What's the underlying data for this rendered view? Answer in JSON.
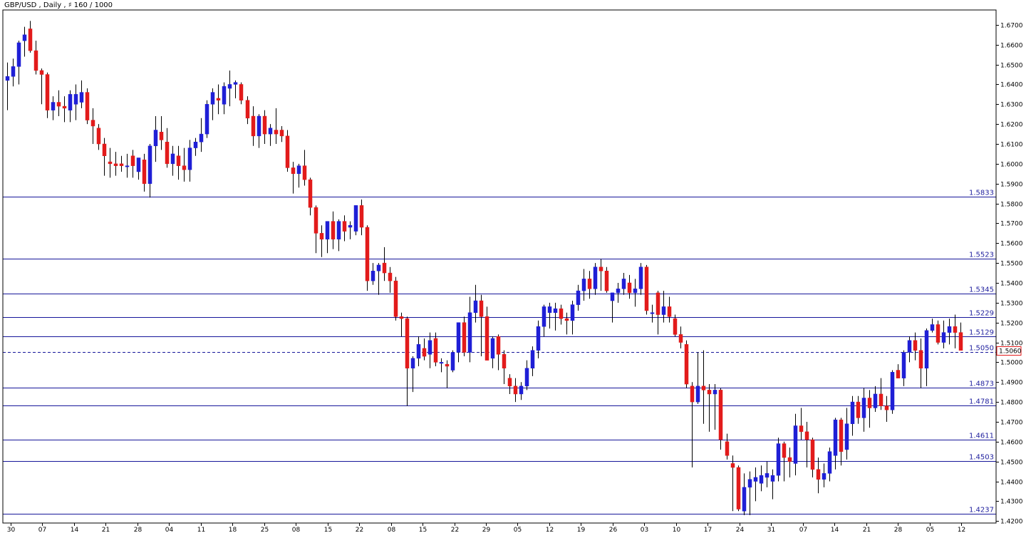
{
  "chart_data": {
    "type": "candlestick",
    "title": "GBP/USD , Daily , ♯ 160 / 1000",
    "ylim": [
      1.419,
      1.6775
    ],
    "y_ticks": [
      1.67,
      1.66,
      1.65,
      1.64,
      1.63,
      1.62,
      1.61,
      1.6,
      1.59,
      1.58,
      1.57,
      1.56,
      1.55,
      1.54,
      1.53,
      1.52,
      1.51,
      1.5,
      1.49,
      1.48,
      1.47,
      1.46,
      1.45,
      1.44,
      1.43,
      1.42
    ],
    "x_tick_labels": [
      "30",
      "07",
      "14",
      "21",
      "28",
      "04",
      "11",
      "18",
      "25",
      "08",
      "15",
      "22",
      "08",
      "15",
      "22",
      "29",
      "05",
      "12",
      "19",
      "26",
      "03",
      "10",
      "17",
      "24",
      "31",
      "07",
      "14",
      "21",
      "28",
      "05",
      "12"
    ],
    "levels": [
      1.5833,
      1.5523,
      1.5345,
      1.5229,
      1.5129,
      1.505,
      1.4873,
      1.4781,
      1.4611,
      1.4503,
      1.4237
    ],
    "current_price": 1.506,
    "colors": {
      "bull": "#1f1fd6",
      "bear": "#e21b1b",
      "level": "#16169a",
      "axis": "#000000"
    },
    "candles": [
      [
        1.642,
        1.651,
        1.627,
        1.644
      ],
      [
        1.644,
        1.653,
        1.639,
        1.649
      ],
      [
        1.649,
        1.662,
        1.64,
        1.661
      ],
      [
        1.662,
        1.669,
        1.654,
        1.665
      ],
      [
        1.668,
        1.672,
        1.656,
        1.657
      ],
      [
        1.657,
        1.662,
        1.645,
        1.647
      ],
      [
        1.647,
        1.648,
        1.63,
        1.645
      ],
      [
        1.645,
        1.646,
        1.623,
        1.627
      ],
      [
        1.627,
        1.634,
        1.622,
        1.631
      ],
      [
        1.631,
        1.637,
        1.624,
        1.629
      ],
      [
        1.629,
        1.634,
        1.621,
        1.628
      ],
      [
        1.627,
        1.637,
        1.621,
        1.635
      ],
      [
        1.63,
        1.64,
        1.622,
        1.635
      ],
      [
        1.631,
        1.642,
        1.628,
        1.636
      ],
      [
        1.636,
        1.638,
        1.62,
        1.622
      ],
      [
        1.622,
        1.628,
        1.61,
        1.619
      ],
      [
        1.618,
        1.62,
        1.607,
        1.61
      ],
      [
        1.61,
        1.613,
        1.594,
        1.604
      ],
      [
        1.601,
        1.608,
        1.593,
        1.6
      ],
      [
        1.6,
        1.606,
        1.594,
        1.599
      ],
      [
        1.6,
        1.604,
        1.596,
        1.599
      ],
      [
        1.599,
        1.605,
        1.593,
        1.599
      ],
      [
        1.604,
        1.607,
        1.593,
        1.599
      ],
      [
        1.596,
        1.603,
        1.592,
        1.603
      ],
      [
        1.602,
        1.605,
        1.586,
        1.59
      ],
      [
        1.59,
        1.61,
        1.583,
        1.609
      ],
      [
        1.609,
        1.624,
        1.601,
        1.617
      ],
      [
        1.616,
        1.624,
        1.607,
        1.612
      ],
      [
        1.611,
        1.618,
        1.598,
        1.6
      ],
      [
        1.6,
        1.609,
        1.594,
        1.605
      ],
      [
        1.604,
        1.609,
        1.592,
        1.599
      ],
      [
        1.599,
        1.608,
        1.591,
        1.597
      ],
      [
        1.597,
        1.612,
        1.591,
        1.608
      ],
      [
        1.608,
        1.613,
        1.604,
        1.611
      ],
      [
        1.611,
        1.623,
        1.606,
        1.615
      ],
      [
        1.615,
        1.632,
        1.613,
        1.63
      ],
      [
        1.63,
        1.638,
        1.622,
        1.636
      ],
      [
        1.633,
        1.64,
        1.625,
        1.632
      ],
      [
        1.63,
        1.641,
        1.625,
        1.639
      ],
      [
        1.638,
        1.647,
        1.629,
        1.64
      ],
      [
        1.64,
        1.642,
        1.633,
        1.641
      ],
      [
        1.64,
        1.641,
        1.63,
        1.632
      ],
      [
        1.632,
        1.634,
        1.62,
        1.623
      ],
      [
        1.624,
        1.629,
        1.609,
        1.614
      ],
      [
        1.614,
        1.625,
        1.608,
        1.624
      ],
      [
        1.624,
        1.627,
        1.61,
        1.615
      ],
      [
        1.615,
        1.62,
        1.609,
        1.618
      ],
      [
        1.617,
        1.628,
        1.61,
        1.615
      ],
      [
        1.617,
        1.619,
        1.611,
        1.614
      ],
      [
        1.614,
        1.617,
        1.596,
        1.598
      ],
      [
        1.598,
        1.601,
        1.585,
        1.595
      ],
      [
        1.595,
        1.6,
        1.588,
        1.599
      ],
      [
        1.599,
        1.607,
        1.589,
        1.592
      ],
      [
        1.592,
        1.593,
        1.574,
        1.578
      ],
      [
        1.578,
        1.579,
        1.555,
        1.565
      ],
      [
        1.565,
        1.569,
        1.553,
        1.562
      ],
      [
        1.562,
        1.571,
        1.555,
        1.571
      ],
      [
        1.571,
        1.576,
        1.557,
        1.562
      ],
      [
        1.562,
        1.572,
        1.556,
        1.571
      ],
      [
        1.571,
        1.574,
        1.561,
        1.566
      ],
      [
        1.568,
        1.571,
        1.562,
        1.569
      ],
      [
        1.566,
        1.579,
        1.564,
        1.579
      ],
      [
        1.579,
        1.582,
        1.564,
        1.568
      ],
      [
        1.568,
        1.569,
        1.536,
        1.541
      ],
      [
        1.541,
        1.55,
        1.539,
        1.546
      ],
      [
        1.546,
        1.55,
        1.534,
        1.549
      ],
      [
        1.55,
        1.558,
        1.541,
        1.545
      ],
      [
        1.545,
        1.548,
        1.535,
        1.541
      ],
      [
        1.541,
        1.543,
        1.521,
        1.523
      ],
      [
        1.523,
        1.525,
        1.513,
        1.522
      ],
      [
        1.522,
        1.523,
        1.478,
        1.497
      ],
      [
        1.497,
        1.503,
        1.485,
        1.502
      ],
      [
        1.502,
        1.513,
        1.498,
        1.509
      ],
      [
        1.507,
        1.512,
        1.501,
        1.503
      ],
      [
        1.504,
        1.515,
        1.497,
        1.511
      ],
      [
        1.512,
        1.515,
        1.498,
        1.5
      ],
      [
        1.5,
        1.502,
        1.495,
        1.5
      ],
      [
        1.499,
        1.501,
        1.487,
        1.498
      ],
      [
        1.496,
        1.506,
        1.495,
        1.505
      ],
      [
        1.505,
        1.52,
        1.5,
        1.52
      ],
      [
        1.52,
        1.523,
        1.503,
        1.505
      ],
      [
        1.505,
        1.533,
        1.5,
        1.525
      ],
      [
        1.525,
        1.539,
        1.52,
        1.531
      ],
      [
        1.531,
        1.534,
        1.503,
        1.523
      ],
      [
        1.523,
        1.528,
        1.502,
        1.501
      ],
      [
        1.502,
        1.513,
        1.497,
        1.512
      ],
      [
        1.513,
        1.514,
        1.496,
        1.504
      ],
      [
        1.504,
        1.506,
        1.489,
        1.497
      ],
      [
        1.492,
        1.494,
        1.484,
        1.488
      ],
      [
        1.488,
        1.492,
        1.48,
        1.484
      ],
      [
        1.484,
        1.49,
        1.481,
        1.488
      ],
      [
        1.488,
        1.501,
        1.486,
        1.497
      ],
      [
        1.497,
        1.508,
        1.493,
        1.506
      ],
      [
        1.506,
        1.521,
        1.502,
        1.518
      ],
      [
        1.518,
        1.529,
        1.513,
        1.528
      ],
      [
        1.525,
        1.53,
        1.517,
        1.528
      ],
      [
        1.525,
        1.53,
        1.516,
        1.527
      ],
      [
        1.527,
        1.529,
        1.519,
        1.522
      ],
      [
        1.522,
        1.525,
        1.514,
        1.521
      ],
      [
        1.521,
        1.531,
        1.514,
        1.529
      ],
      [
        1.529,
        1.539,
        1.526,
        1.536
      ],
      [
        1.536,
        1.547,
        1.531,
        1.542
      ],
      [
        1.542,
        1.546,
        1.532,
        1.537
      ],
      [
        1.537,
        1.55,
        1.534,
        1.548
      ],
      [
        1.548,
        1.552,
        1.536,
        1.546
      ],
      [
        1.546,
        1.548,
        1.535,
        1.536
      ],
      [
        1.531,
        1.535,
        1.52,
        1.535
      ],
      [
        1.535,
        1.54,
        1.53,
        1.537
      ],
      [
        1.537,
        1.545,
        1.534,
        1.542
      ],
      [
        1.54,
        1.544,
        1.532,
        1.535
      ],
      [
        1.535,
        1.542,
        1.528,
        1.537
      ],
      [
        1.537,
        1.55,
        1.534,
        1.548
      ],
      [
        1.548,
        1.549,
        1.524,
        1.526
      ],
      [
        1.525,
        1.529,
        1.52,
        1.525
      ],
      [
        1.535,
        1.536,
        1.514,
        1.524
      ],
      [
        1.524,
        1.536,
        1.52,
        1.528
      ],
      [
        1.528,
        1.533,
        1.52,
        1.523
      ],
      [
        1.522,
        1.524,
        1.513,
        1.514
      ],
      [
        1.514,
        1.518,
        1.507,
        1.51
      ],
      [
        1.509,
        1.511,
        1.487,
        1.489
      ],
      [
        1.488,
        1.49,
        1.447,
        1.48
      ],
      [
        1.48,
        1.505,
        1.479,
        1.488
      ],
      [
        1.488,
        1.506,
        1.469,
        1.486
      ],
      [
        1.486,
        1.489,
        1.465,
        1.484
      ],
      [
        1.484,
        1.489,
        1.466,
        1.486
      ],
      [
        1.486,
        1.487,
        1.456,
        1.461
      ],
      [
        1.46,
        1.464,
        1.451,
        1.453
      ],
      [
        1.449,
        1.453,
        1.425,
        1.447
      ],
      [
        1.447,
        1.448,
        1.425,
        1.426
      ],
      [
        1.425,
        1.444,
        1.423,
        1.437
      ],
      [
        1.437,
        1.445,
        1.423,
        1.441
      ],
      [
        1.44,
        1.447,
        1.43,
        1.442
      ],
      [
        1.439,
        1.448,
        1.435,
        1.443
      ],
      [
        1.442,
        1.45,
        1.437,
        1.444
      ],
      [
        1.44,
        1.446,
        1.431,
        1.443
      ],
      [
        1.443,
        1.462,
        1.44,
        1.459
      ],
      [
        1.459,
        1.46,
        1.44,
        1.452
      ],
      [
        1.452,
        1.457,
        1.442,
        1.45
      ],
      [
        1.449,
        1.474,
        1.443,
        1.468
      ],
      [
        1.468,
        1.477,
        1.461,
        1.465
      ],
      [
        1.465,
        1.47,
        1.447,
        1.461
      ],
      [
        1.461,
        1.462,
        1.442,
        1.446
      ],
      [
        1.446,
        1.452,
        1.434,
        1.441
      ],
      [
        1.441,
        1.449,
        1.437,
        1.444
      ],
      [
        1.444,
        1.457,
        1.44,
        1.455
      ],
      [
        1.453,
        1.472,
        1.446,
        1.471
      ],
      [
        1.471,
        1.472,
        1.448,
        1.455
      ],
      [
        1.456,
        1.477,
        1.451,
        1.469
      ],
      [
        1.469,
        1.483,
        1.463,
        1.48
      ],
      [
        1.48,
        1.483,
        1.469,
        1.472
      ],
      [
        1.472,
        1.487,
        1.465,
        1.482
      ],
      [
        1.482,
        1.486,
        1.467,
        1.477
      ],
      [
        1.477,
        1.488,
        1.475,
        1.484
      ],
      [
        1.484,
        1.492,
        1.476,
        1.478
      ],
      [
        1.478,
        1.483,
        1.47,
        1.476
      ],
      [
        1.476,
        1.496,
        1.474,
        1.495
      ],
      [
        1.496,
        1.499,
        1.493,
        1.492
      ],
      [
        1.492,
        1.506,
        1.488,
        1.505
      ],
      [
        1.505,
        1.513,
        1.5,
        1.511
      ],
      [
        1.511,
        1.515,
        1.501,
        1.506
      ],
      [
        1.506,
        1.512,
        1.487,
        1.497
      ],
      [
        1.497,
        1.517,
        1.488,
        1.516
      ],
      [
        1.516,
        1.522,
        1.515,
        1.519
      ],
      [
        1.519,
        1.521,
        1.509,
        1.51
      ],
      [
        1.51,
        1.521,
        1.507,
        1.515
      ],
      [
        1.515,
        1.522,
        1.509,
        1.518
      ],
      [
        1.518,
        1.524,
        1.507,
        1.515
      ],
      [
        1.515,
        1.52,
        1.506,
        1.506
      ]
    ]
  }
}
